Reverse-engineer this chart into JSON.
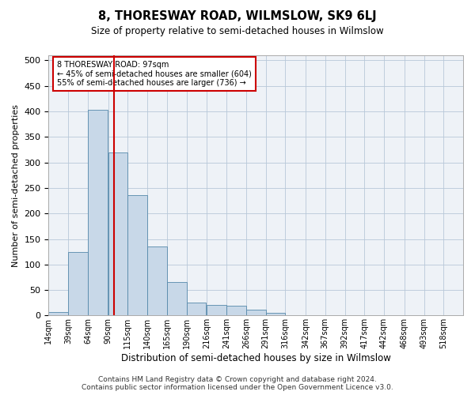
{
  "title": "8, THORESWAY ROAD, WILMSLOW, SK9 6LJ",
  "subtitle": "Size of property relative to semi-detached houses in Wilmslow",
  "xlabel": "Distribution of semi-detached houses by size in Wilmslow",
  "ylabel": "Number of semi-detached properties",
  "bar_color": "#c8d8e8",
  "bar_edge_color": "#5588aa",
  "annotation_box_color": "#cc0000",
  "property_line_x": 97,
  "annotation_text_line1": "8 THORESWAY ROAD: 97sqm",
  "annotation_text_line2": "← 45% of semi-detached houses are smaller (604)",
  "annotation_text_line3": "55% of semi-detached houses are larger (736) →",
  "bins": [
    14,
    39,
    64,
    90,
    115,
    140,
    165,
    190,
    216,
    241,
    266,
    291,
    316,
    342,
    367,
    392,
    417,
    442,
    468,
    493,
    518
  ],
  "counts": [
    7,
    124,
    403,
    320,
    236,
    135,
    65,
    25,
    21,
    19,
    11,
    6,
    1,
    0,
    1,
    0,
    0,
    0,
    1,
    0,
    0
  ],
  "ylim": [
    0,
    510
  ],
  "yticks": [
    0,
    50,
    100,
    150,
    200,
    250,
    300,
    350,
    400,
    450,
    500
  ],
  "footer_line1": "Contains HM Land Registry data © Crown copyright and database right 2024.",
  "footer_line2": "Contains public sector information licensed under the Open Government Licence v3.0.",
  "background_color": "#eef2f7"
}
